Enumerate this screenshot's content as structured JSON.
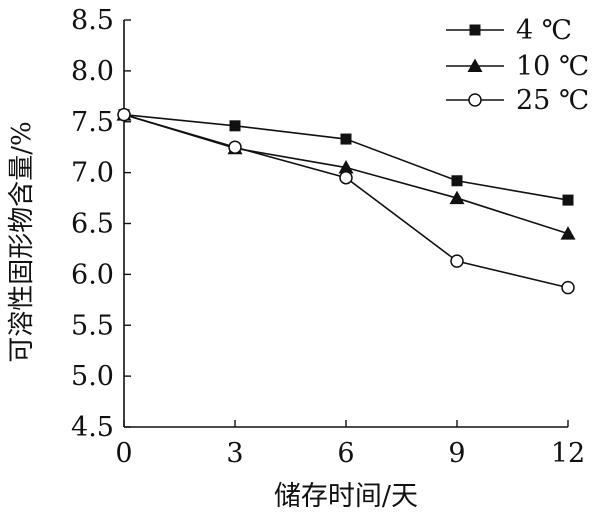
{
  "chart_data": {
    "type": "line",
    "title": "",
    "xlabel": "储存时间/天",
    "ylabel": "可溶性固形物含量/%",
    "x": [
      0,
      3,
      6,
      9,
      12
    ],
    "xticks": [
      "0",
      "3",
      "6",
      "9",
      "12"
    ],
    "yticks": [
      "4.5",
      "5.0",
      "5.5",
      "6.0",
      "6.5",
      "7.0",
      "7.5",
      "8.0",
      "8.5"
    ],
    "xlim": [
      0,
      12
    ],
    "ylim": [
      4.5,
      8.5
    ],
    "grid": false,
    "legend_position": "top-right",
    "series": [
      {
        "name": "4 ℃",
        "marker": "square",
        "values": [
          7.57,
          7.46,
          7.33,
          6.92,
          6.73
        ]
      },
      {
        "name": "10 ℃",
        "marker": "triangle",
        "values": [
          7.57,
          7.24,
          7.05,
          6.75,
          6.4
        ]
      },
      {
        "name": "25 ℃",
        "marker": "circle",
        "values": [
          7.57,
          7.25,
          6.95,
          6.13,
          5.87
        ]
      }
    ]
  }
}
